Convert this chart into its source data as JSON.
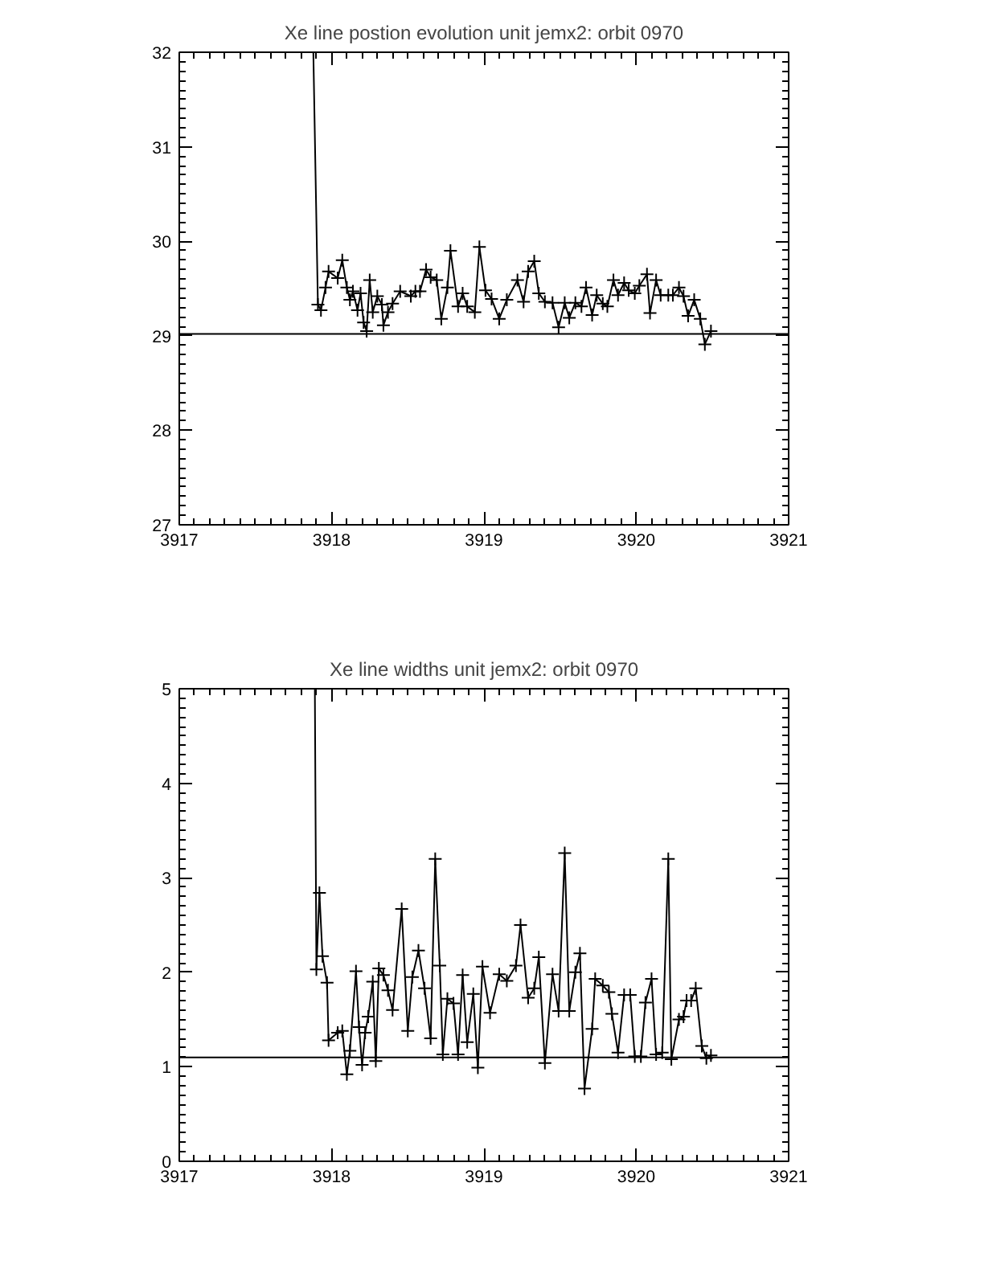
{
  "chart_data": [
    {
      "type": "line",
      "title": "Xe line postion evolution unit jemx2: orbit 0970",
      "marker": "cross",
      "line_style": "solid",
      "grid": false,
      "xlim": [
        3917,
        3921
      ],
      "xticks": [
        3917,
        3918,
        3919,
        3920,
        3921
      ],
      "ylim": [
        27,
        32
      ],
      "yticks": [
        27,
        28,
        29,
        30,
        31,
        32
      ],
      "ref_lines": [
        {
          "axis": "y",
          "value": 29.02
        }
      ],
      "series": [
        {
          "color": "#000000",
          "x": [
            3917.88,
            3917.91,
            3917.93,
            3917.96,
            3917.98,
            3918.04,
            3918.07,
            3918.1,
            3918.12,
            3918.14,
            3918.17,
            3918.19,
            3918.21,
            3918.23,
            3918.25,
            3918.27,
            3918.3,
            3918.33,
            3918.34,
            3918.37,
            3918.4,
            3918.45,
            3918.52,
            3918.55,
            3918.58,
            3918.62,
            3918.65,
            3918.69,
            3918.72,
            3918.76,
            3918.78,
            3918.83,
            3918.86,
            3918.89,
            3918.94,
            3918.97,
            3919.01,
            3919.05,
            3919.1,
            3919.15,
            3919.22,
            3919.26,
            3919.29,
            3919.33,
            3919.36,
            3919.4,
            3919.45,
            3919.49,
            3919.53,
            3919.56,
            3919.6,
            3919.64,
            3919.67,
            3919.71,
            3919.74,
            3919.78,
            3919.81,
            3919.85,
            3919.88,
            3919.92,
            3919.95,
            3919.99,
            3920.02,
            3920.07,
            3920.09,
            3920.13,
            3920.16,
            3920.21,
            3920.24,
            3920.28,
            3920.31,
            3920.34,
            3920.38,
            3920.42,
            3920.45,
            3920.49
          ],
          "values": [
            32,
            29.33,
            29.27,
            29.51,
            29.68,
            29.61,
            29.8,
            29.51,
            29.38,
            29.47,
            29.27,
            29.45,
            29.14,
            29.05,
            29.59,
            29.25,
            29.42,
            29.33,
            29.11,
            29.25,
            29.34,
            29.47,
            29.42,
            29.47,
            29.47,
            29.7,
            29.62,
            29.59,
            29.18,
            29.51,
            29.9,
            29.31,
            29.45,
            29.31,
            29.25,
            29.94,
            29.48,
            29.39,
            29.18,
            29.38,
            29.59,
            29.36,
            29.68,
            29.79,
            29.45,
            29.36,
            29.35,
            29.09,
            29.35,
            29.19,
            29.35,
            29.31,
            29.51,
            29.22,
            29.43,
            29.34,
            29.31,
            29.59,
            29.43,
            29.56,
            29.48,
            29.45,
            29.53,
            29.65,
            29.24,
            29.59,
            29.43,
            29.43,
            29.43,
            29.51,
            29.42,
            29.21,
            29.38,
            29.18,
            28.91,
            29.05
          ]
        }
      ]
    },
    {
      "type": "line",
      "title": "Xe line widths unit jemx2: orbit 0970",
      "marker": "cross",
      "line_style": "solid",
      "grid": false,
      "xlim": [
        3917,
        3921
      ],
      "xticks": [
        3917,
        3918,
        3919,
        3920,
        3921
      ],
      "ylim": [
        0,
        5
      ],
      "yticks": [
        0,
        1,
        2,
        3,
        4,
        5
      ],
      "ref_lines": [
        {
          "axis": "y",
          "value": 1.1
        }
      ],
      "series": [
        {
          "color": "#000000",
          "x": [
            3917.89,
            3917.9,
            3917.92,
            3917.94,
            3917.97,
            3917.98,
            3918.04,
            3918.07,
            3918.1,
            3918.12,
            3918.16,
            3918.18,
            3918.2,
            3918.22,
            3918.24,
            3918.27,
            3918.29,
            3918.31,
            3918.34,
            3918.37,
            3918.4,
            3918.46,
            3918.5,
            3918.53,
            3918.57,
            3918.61,
            3918.65,
            3918.68,
            3918.71,
            3918.73,
            3918.76,
            3918.8,
            3918.83,
            3918.86,
            3918.89,
            3918.93,
            3918.96,
            3918.99,
            3919.04,
            3919.1,
            3919.15,
            3919.21,
            3919.24,
            3919.29,
            3919.33,
            3919.36,
            3919.4,
            3919.45,
            3919.49,
            3919.53,
            3919.56,
            3919.6,
            3919.63,
            3919.66,
            3919.71,
            3919.73,
            3919.78,
            3919.82,
            3919.84,
            3919.88,
            3919.92,
            3919.96,
            3919.99,
            3920.03,
            3920.06,
            3920.1,
            3920.13,
            3920.17,
            3920.21,
            3920.23,
            3920.28,
            3920.31,
            3920.33,
            3920.36,
            3920.39,
            3920.43,
            3920.46,
            3920.49
          ],
          "values": [
            5,
            2.03,
            2.84,
            2.17,
            1.89,
            1.28,
            1.36,
            1.38,
            0.92,
            1.17,
            2.01,
            1.42,
            1.02,
            1.36,
            1.53,
            1.9,
            1.06,
            2.04,
            1.97,
            1.81,
            1.6,
            2.67,
            1.38,
            1.95,
            2.23,
            1.83,
            1.3,
            3.2,
            2.07,
            1.13,
            1.72,
            1.67,
            1.13,
            1.97,
            1.26,
            1.77,
            0.99,
            2.06,
            1.57,
            1.98,
            1.91,
            2.07,
            2.5,
            1.73,
            1.83,
            2.16,
            1.04,
            1.98,
            1.59,
            3.26,
            1.59,
            2.0,
            2.2,
            0.77,
            1.4,
            1.93,
            1.86,
            1.79,
            1.56,
            1.15,
            1.76,
            1.76,
            1.11,
            1.11,
            1.68,
            1.93,
            1.13,
            1.15,
            3.2,
            1.08,
            1.5,
            1.53,
            1.7,
            1.7,
            1.83,
            1.22,
            1.09,
            1.12
          ]
        }
      ]
    }
  ]
}
